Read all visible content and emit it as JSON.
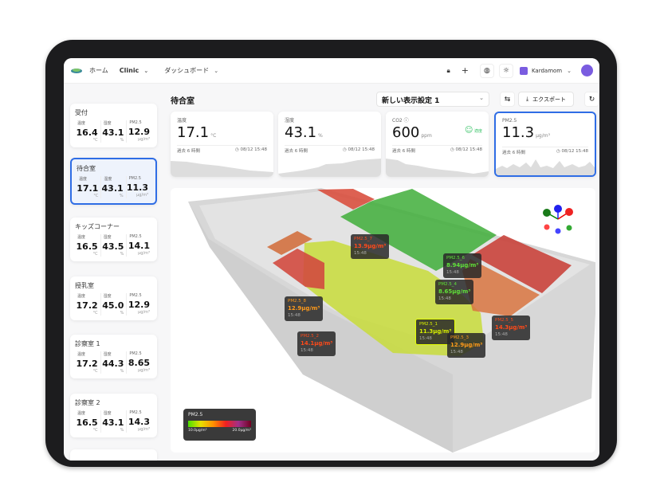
{
  "topbar": {
    "home": "ホーム",
    "org": "Clinic",
    "dashboard": "ダッシュボード",
    "user": "Kardamom"
  },
  "page": {
    "title": "待合室",
    "view_select": "新しい表示設定 1",
    "export": "エクスポート"
  },
  "sidebar": [
    {
      "name": "受付",
      "t": "16.4",
      "h": "43.1",
      "pm": "12.9"
    },
    {
      "name": "待合室",
      "t": "17.1",
      "h": "43.1",
      "pm": "11.3",
      "selected": true
    },
    {
      "name": "キッズコーナー",
      "t": "16.5",
      "h": "43.5",
      "pm": "14.1"
    },
    {
      "name": "授乳室",
      "t": "17.2",
      "h": "45.0",
      "pm": "12.9"
    },
    {
      "name": "診察室 1",
      "t": "17.2",
      "h": "44.3",
      "pm": "8.65"
    },
    {
      "name": "診察室 2",
      "t": "16.5",
      "h": "43.1",
      "pm": "14.3"
    }
  ],
  "labels": {
    "temp": "温度",
    "hum": "湿度",
    "pm": "PM2.5",
    "unit_t": "°C",
    "unit_h": "%",
    "unit_pm": "μg/m³",
    "range": "過去 6 時間",
    "time": "08/12 15:48",
    "co2": "CO2",
    "unit_co2": "ppm",
    "status": "適度"
  },
  "metrics": {
    "temp": "17.1",
    "hum": "43.1",
    "co2": "600",
    "pm": "11.3"
  },
  "sensors": [
    {
      "id": "PM2.5_7",
      "v": "13.9μg/m³",
      "t": "15:48",
      "c": "#ff4a1a"
    },
    {
      "id": "PM2.5_6",
      "v": "8.94μg/m³",
      "t": "15:48",
      "c": "#5fe03a"
    },
    {
      "id": "PM2.5_4",
      "v": "8.65μg/m³",
      "t": "15:48",
      "c": "#5fe03a"
    },
    {
      "id": "PM2.5_8",
      "v": "12.9μg/m³",
      "t": "15:48",
      "c": "#ff9a1a"
    },
    {
      "id": "PM2.5_2",
      "v": "14.1μg/m³",
      "t": "15:48",
      "c": "#ff4a1a"
    },
    {
      "id": "PM2.5_1",
      "v": "11.3μg/m³",
      "t": "15:48",
      "c": "#d8f000"
    },
    {
      "id": "PM2.5_3",
      "v": "12.9μg/m³",
      "t": "15:48",
      "c": "#ff9a1a"
    },
    {
      "id": "PM2.5_5",
      "v": "14.3μg/m³",
      "t": "15:48",
      "c": "#ff4a1a"
    }
  ],
  "legend": {
    "title": "PM2.5",
    "min": "10.0μg/m³",
    "max": "20.0μg/m³"
  },
  "colors": {
    "accent": "#2f6de5",
    "good": "#3cc46a"
  }
}
